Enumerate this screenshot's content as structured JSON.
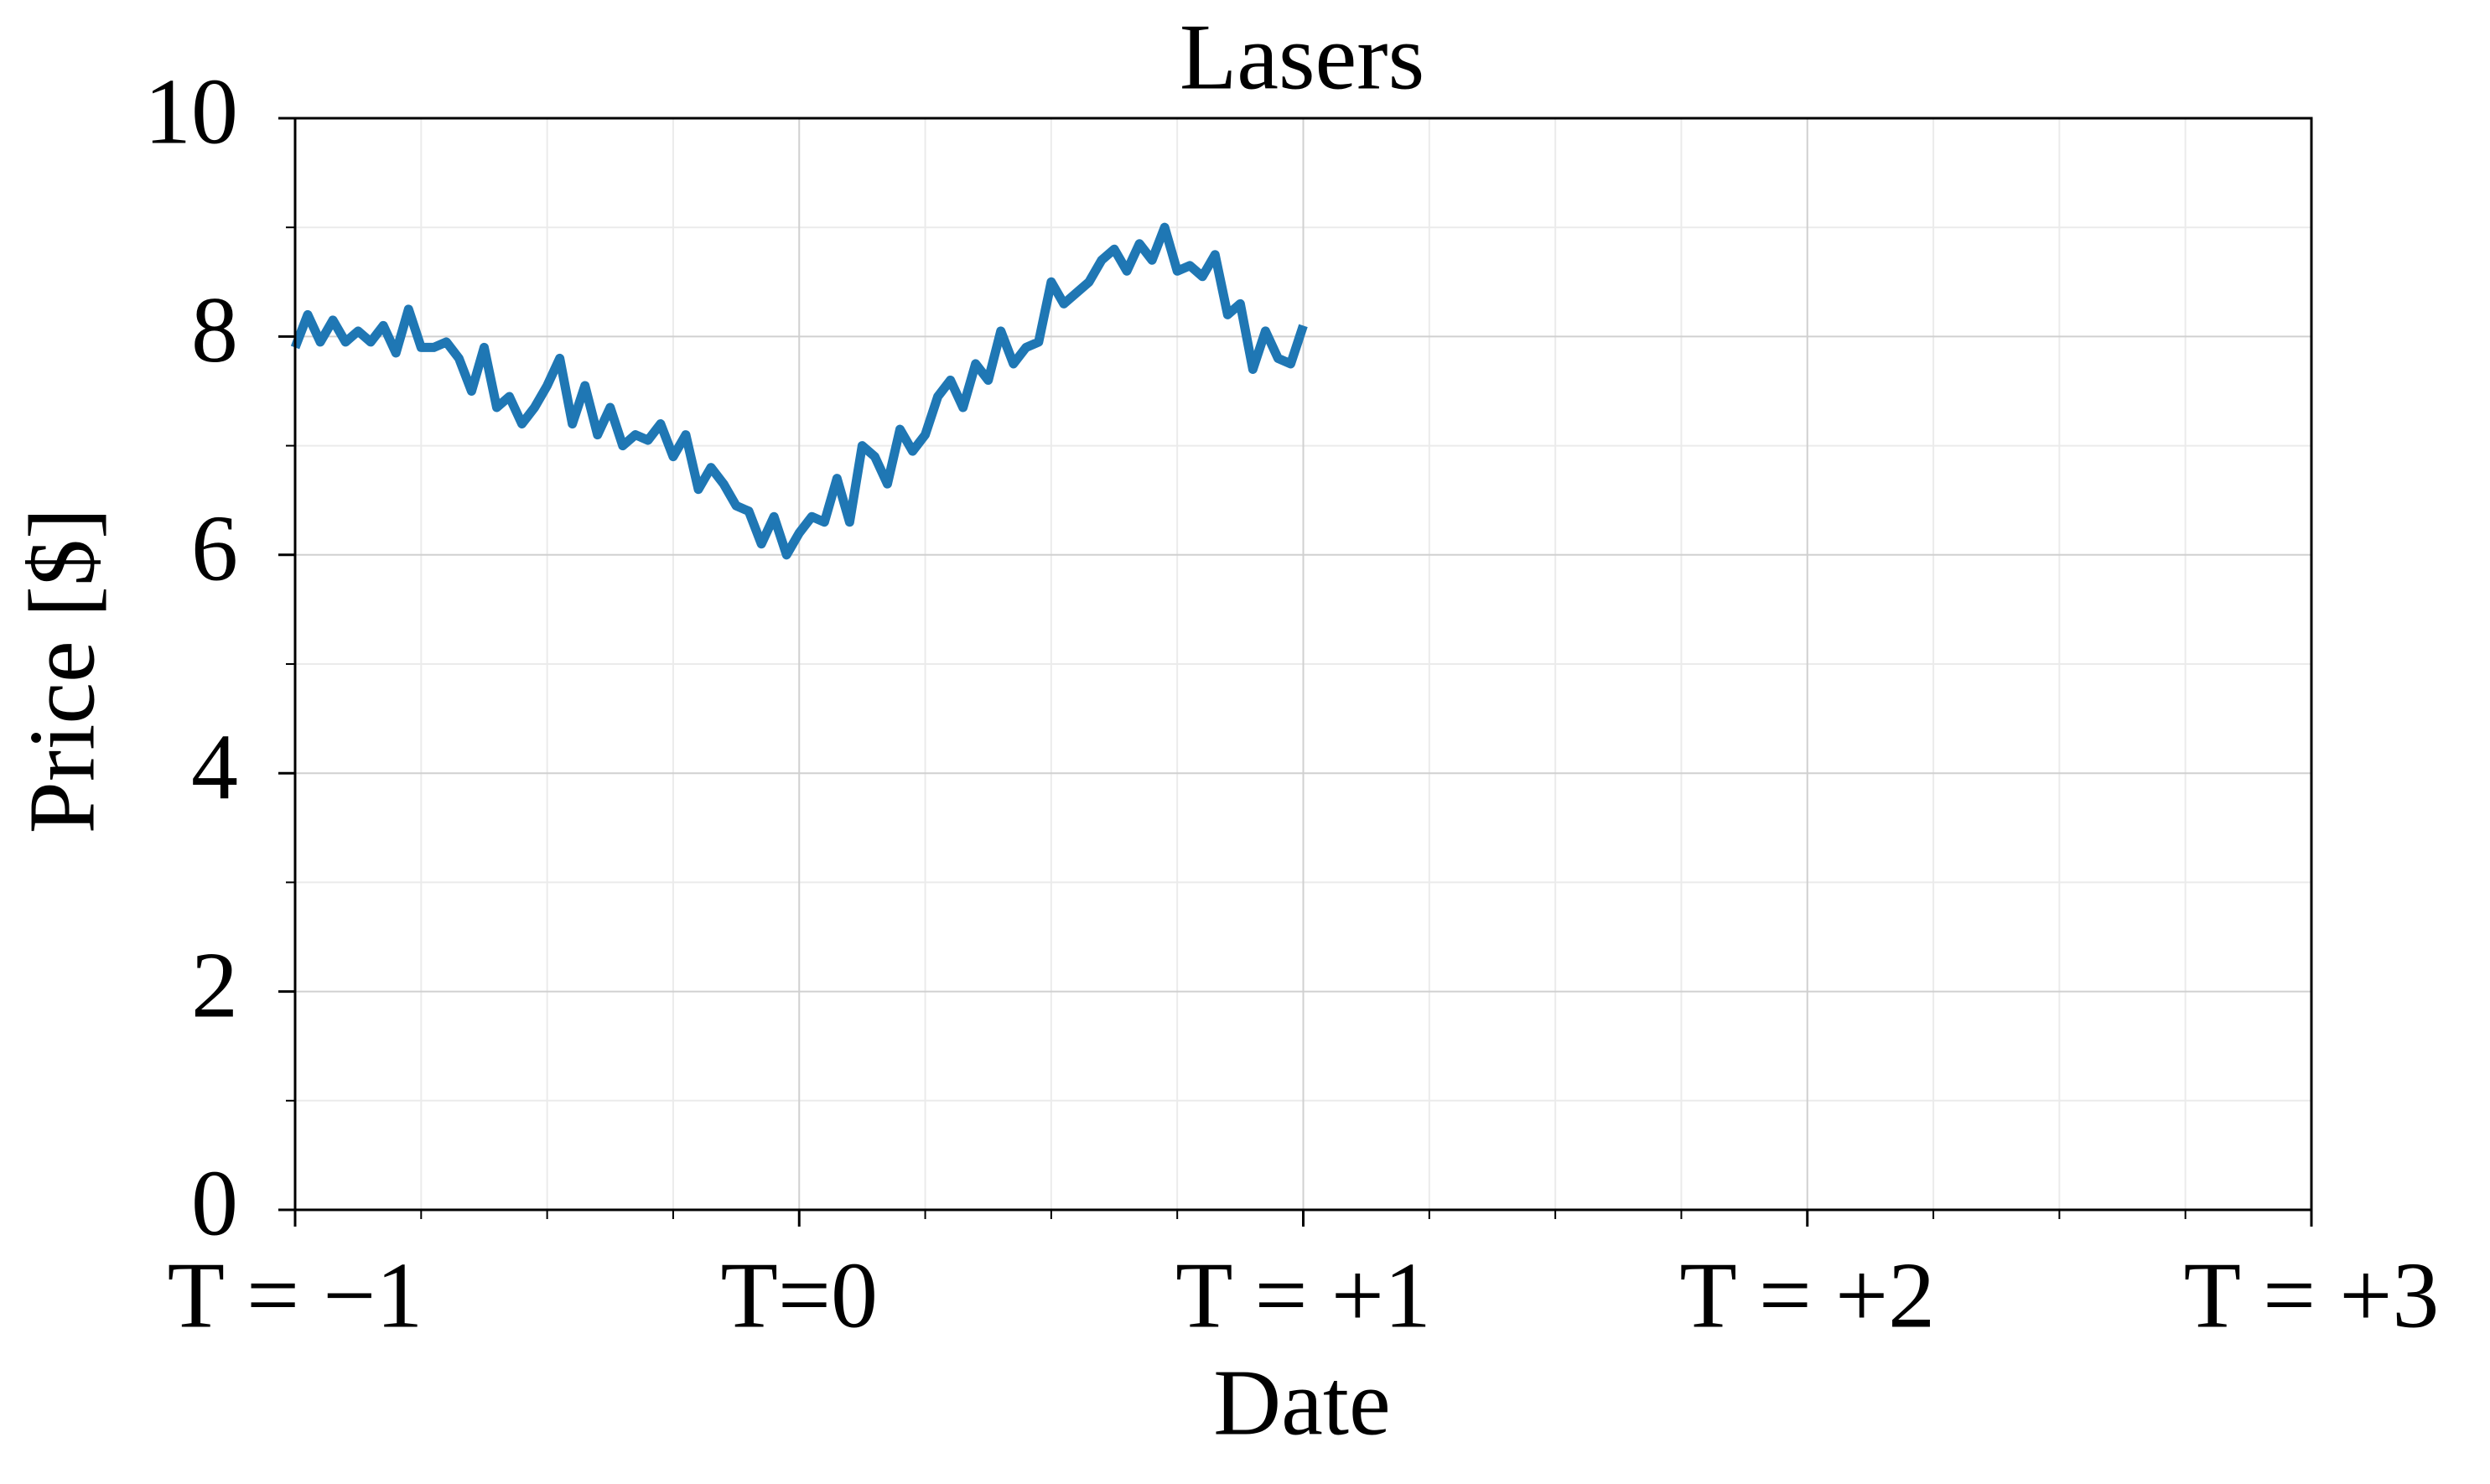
{
  "chart_data": {
    "type": "line",
    "title": "Lasers",
    "xlabel": "Date",
    "ylabel": "Price [$]",
    "x": [
      -1,
      -0.975,
      -0.95,
      -0.925,
      -0.9,
      -0.875,
      -0.85,
      -0.825,
      -0.8,
      -0.775,
      -0.75,
      -0.725,
      -0.7,
      -0.675,
      -0.65,
      -0.625,
      -0.6,
      -0.575,
      -0.55,
      -0.525,
      -0.5,
      -0.475,
      -0.45,
      -0.425,
      -0.4,
      -0.375,
      -0.35,
      -0.325,
      -0.3,
      -0.275,
      -0.25,
      -0.225,
      -0.2,
      -0.175,
      -0.15,
      -0.125,
      -0.1,
      -0.075,
      -0.05,
      -0.025,
      0,
      0.025,
      0.05,
      0.075,
      0.1,
      0.125,
      0.15,
      0.175,
      0.2,
      0.225,
      0.25,
      0.275,
      0.3,
      0.325,
      0.35,
      0.375,
      0.4,
      0.425,
      0.45,
      0.475,
      0.5,
      0.525,
      0.55,
      0.575,
      0.6,
      0.625,
      0.65,
      0.675,
      0.7,
      0.725,
      0.75,
      0.775,
      0.8,
      0.825,
      0.85,
      0.875,
      0.9,
      0.925,
      0.95,
      0.975,
      1
    ],
    "series": [
      {
        "name": "Lasers",
        "color": "#1f77b4",
        "values": [
          7.9,
          8.2,
          7.95,
          8.15,
          7.95,
          8.05,
          7.95,
          8.1,
          7.85,
          8.25,
          7.9,
          7.9,
          7.95,
          7.8,
          7.5,
          7.9,
          7.35,
          7.45,
          7.2,
          7.35,
          7.55,
          7.8,
          7.2,
          7.55,
          7.1,
          7.35,
          7.0,
          7.1,
          7.05,
          7.2,
          6.9,
          7.1,
          6.6,
          6.8,
          6.65,
          6.45,
          6.4,
          6.1,
          6.35,
          6.0,
          6.2,
          6.35,
          6.3,
          6.7,
          6.3,
          7.0,
          6.9,
          6.65,
          7.15,
          6.95,
          7.1,
          7.45,
          7.6,
          7.35,
          7.75,
          7.6,
          8.05,
          7.75,
          7.9,
          7.95,
          8.5,
          8.3,
          8.4,
          8.5,
          8.7,
          8.8,
          8.6,
          8.85,
          8.7,
          9.0,
          8.6,
          8.65,
          8.55,
          8.75,
          8.2,
          8.3,
          7.7,
          8.05,
          7.8,
          7.75,
          8.1
        ]
      }
    ],
    "xlim": [
      -1,
      3
    ],
    "xticks": [
      {
        "value": -1,
        "label": "T = −1"
      },
      {
        "value": 0,
        "label": "T=0"
      },
      {
        "value": 1,
        "label": "T = +1"
      },
      {
        "value": 2,
        "label": "T = +2"
      },
      {
        "value": 3,
        "label": "T = +3"
      }
    ],
    "xminorticks": [
      -0.75,
      -0.5,
      -0.25,
      0.25,
      0.5,
      0.75,
      1.25,
      1.5,
      1.75,
      2.25,
      2.5,
      2.75
    ],
    "ylim": [
      0,
      10
    ],
    "yticks": [
      0,
      2,
      4,
      6,
      8,
      10
    ],
    "yminorticks": [
      1,
      3,
      5,
      7,
      9
    ],
    "grid": true
  }
}
